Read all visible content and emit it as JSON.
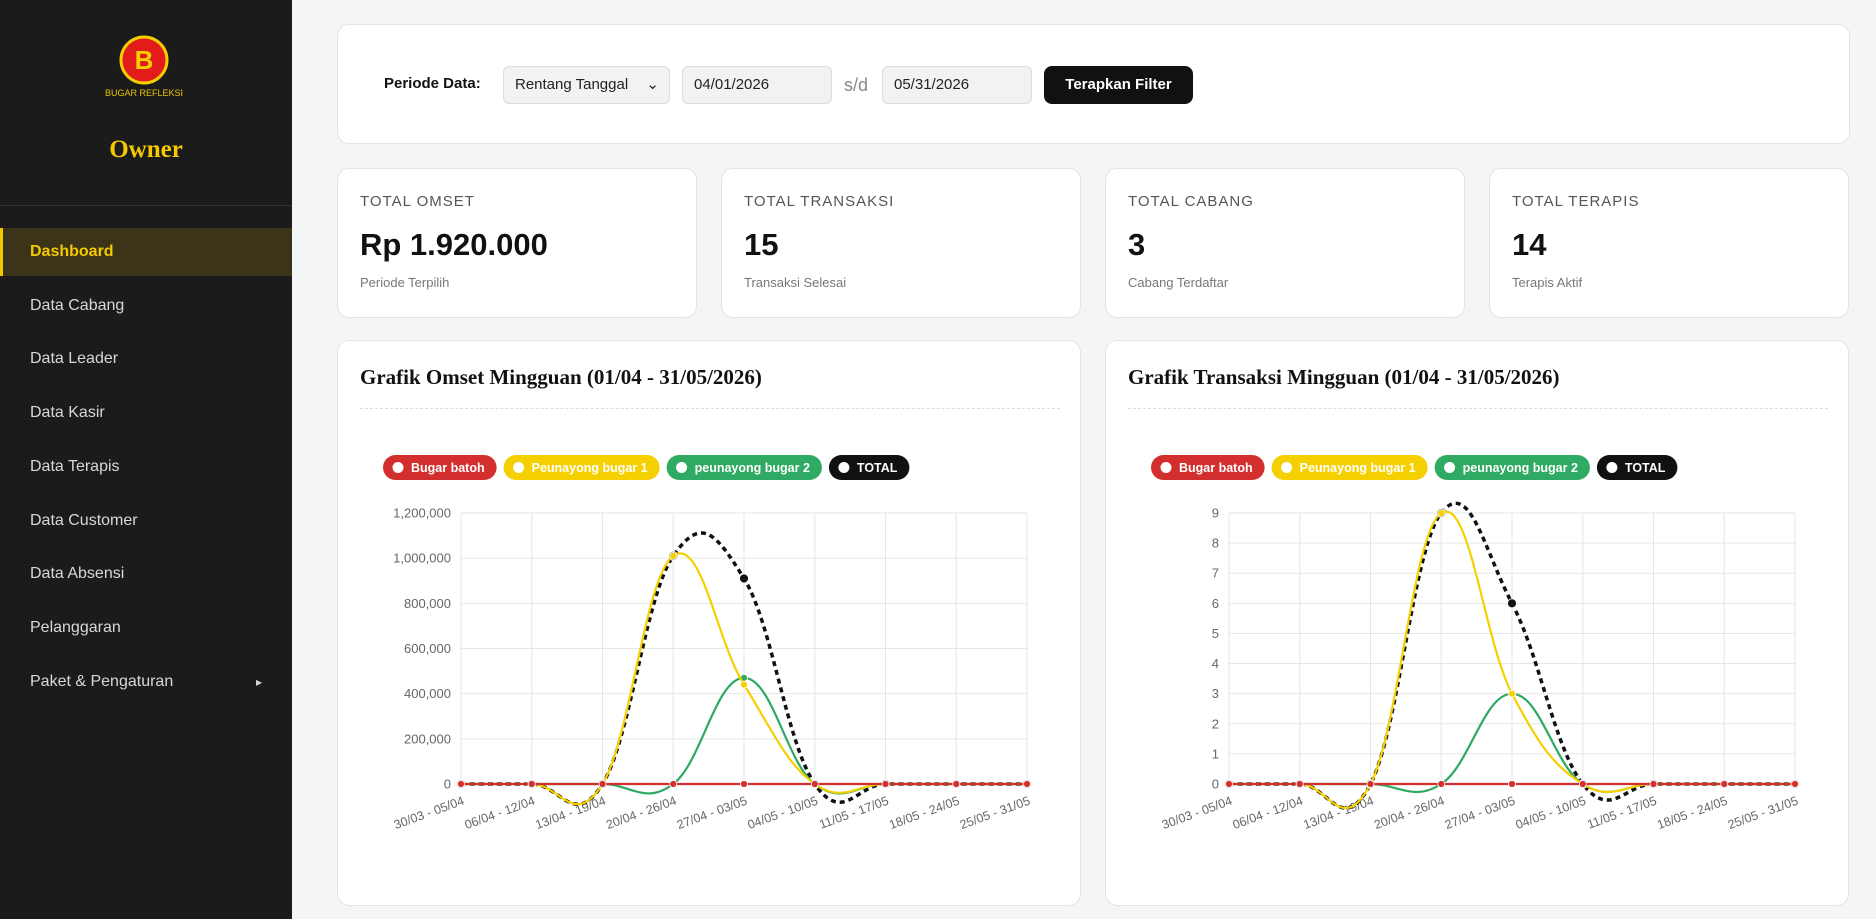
{
  "sidebar": {
    "logo_text": "BUGAR REFLEKSI",
    "role": "Owner",
    "menu": [
      "Dashboard",
      "Data Cabang",
      "Data Leader",
      "Data Kasir",
      "Data Terapis",
      "Data Customer",
      "Data Absensi",
      "Pelanggaran",
      "Paket & Pengaturan"
    ]
  },
  "filter": {
    "label": "Periode Data:",
    "mode": "Rentang Tanggal",
    "start": "04/01/2026",
    "separator": "s/d",
    "end": "05/31/2026",
    "button": "Terapkan Filter"
  },
  "cards": [
    {
      "label": "TOTAL OMSET",
      "value": "Rp 1.920.000",
      "sub": "Periode Terpilih"
    },
    {
      "label": "TOTAL TRANSAKSI",
      "value": "15",
      "sub": "Transaksi Selesai"
    },
    {
      "label": "TOTAL CABANG",
      "value": "3",
      "sub": "Cabang Terdaftar"
    },
    {
      "label": "TOTAL TERAPIS",
      "value": "14",
      "sub": "Terapis Aktif"
    }
  ],
  "chart_data": [
    {
      "type": "line",
      "title": "Grafik Omset Mingguan (01/04 - 31/05/2026)",
      "categories": [
        "30/03 - 05/04",
        "06/04 - 12/04",
        "13/04 - 19/04",
        "20/04 - 26/04",
        "27/04 - 03/05",
        "04/05 - 10/05",
        "11/05 - 17/05",
        "18/05 - 24/05",
        "25/05 - 31/05"
      ],
      "series": [
        {
          "name": "Bugar batoh",
          "color": "#d32f2f",
          "values": [
            0,
            0,
            0,
            0,
            0,
            0,
            0,
            0,
            0
          ]
        },
        {
          "name": "Peunayong bugar 1",
          "color": "#f5d000",
          "values": [
            0,
            0,
            0,
            1010000,
            440000,
            0,
            0,
            0,
            0
          ]
        },
        {
          "name": "peunayong bugar 2",
          "color": "#2eaa62",
          "values": [
            0,
            0,
            0,
            0,
            470000,
            0,
            0,
            0,
            0
          ]
        },
        {
          "name": "TOTAL",
          "color": "#111111",
          "line_style": "dashed",
          "values": [
            0,
            0,
            0,
            1010000,
            910000,
            0,
            0,
            0,
            0
          ]
        }
      ],
      "ylim": [
        0,
        1200000
      ],
      "yticks": [
        0,
        {
          "value": 200000,
          "label": "200,000"
        },
        {
          "value": 400000,
          "label": "400,000"
        },
        {
          "value": 600000,
          "label": "600,000"
        },
        {
          "value": 800000,
          "label": "800,000"
        },
        {
          "value": 1000000,
          "label": "1,000,000"
        },
        {
          "value": 1200000,
          "label": "1,200,000"
        }
      ],
      "grid": true,
      "legend": "top"
    },
    {
      "type": "line",
      "title": "Grafik Transaksi Mingguan (01/04 - 31/05/2026)",
      "categories": [
        "30/03 - 05/04",
        "06/04 - 12/04",
        "13/04 - 19/04",
        "20/04 - 26/04",
        "27/04 - 03/05",
        "04/05 - 10/05",
        "11/05 - 17/05",
        "18/05 - 24/05",
        "25/05 - 31/05"
      ],
      "series": [
        {
          "name": "Bugar batoh",
          "color": "#d32f2f",
          "values": [
            0,
            0,
            0,
            0,
            0,
            0,
            0,
            0,
            0
          ]
        },
        {
          "name": "Peunayong bugar 1",
          "color": "#f5d000",
          "values": [
            0,
            0,
            0,
            9,
            3,
            0,
            0,
            0,
            0
          ]
        },
        {
          "name": "peunayong bugar 2",
          "color": "#2eaa62",
          "values": [
            0,
            0,
            0,
            0,
            3,
            0,
            0,
            0,
            0
          ]
        },
        {
          "name": "TOTAL",
          "color": "#111111",
          "line_style": "dashed",
          "values": [
            0,
            0,
            0,
            9,
            6,
            0,
            0,
            0,
            0
          ]
        }
      ],
      "ylim": [
        0,
        9
      ],
      "yticks": [
        0,
        1,
        2,
        3,
        4,
        5,
        6,
        7,
        8,
        9
      ],
      "grid": true,
      "legend": "top"
    }
  ]
}
